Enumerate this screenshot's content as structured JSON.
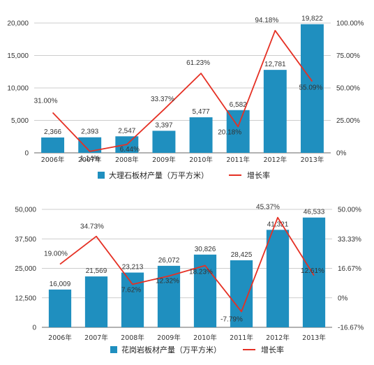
{
  "colors": {
    "bar": "#1f8fbf",
    "line": "#e53024",
    "grid": "#bdbdbd"
  },
  "chart_data": [
    {
      "type": "bar",
      "categories": [
        "2006年",
        "2007年",
        "2008年",
        "2009年",
        "2010年",
        "2011年",
        "2012年",
        "2013年"
      ],
      "series": [
        {
          "name": "大理石板材产量（万平方米）",
          "type": "bar",
          "axis": "left",
          "values": [
            2366,
            2393,
            2547,
            3397,
            5477,
            6582,
            12781,
            19822
          ],
          "labels": [
            "2,366",
            "2,393",
            "2,547",
            "3,397",
            "5,477",
            "6,582",
            "12,781",
            "19,822"
          ]
        },
        {
          "name": "增长率",
          "type": "line",
          "axis": "right",
          "values": [
            31.0,
            1.14,
            6.44,
            33.37,
            61.23,
            20.18,
            94.18,
            55.09
          ],
          "labels": [
            "31.00%",
            "1.14%",
            "6.44%",
            "33.37%",
            "61.23%",
            "20.18%",
            "94.18%",
            "55.09%"
          ]
        }
      ],
      "ylim_left": [
        0,
        20000
      ],
      "yticks_left": [
        "0",
        "5,000",
        "10,000",
        "15,000",
        "20,000"
      ],
      "ylim_right": [
        0,
        100
      ],
      "yticks_right": [
        "0%",
        "25.00%",
        "50.00%",
        "75.00%",
        "100.00%"
      ],
      "grid": true,
      "legend": "bottom"
    },
    {
      "type": "bar",
      "categories": [
        "2006年",
        "2007年",
        "2008年",
        "2009年",
        "2010年",
        "2011年",
        "2012年",
        "2013年"
      ],
      "series": [
        {
          "name": "花岗岩板材产量（万平方米）",
          "type": "bar",
          "axis": "left",
          "values": [
            16009,
            21569,
            23213,
            26072,
            30826,
            28425,
            41321,
            46533
          ],
          "labels": [
            "16,009",
            "21,569",
            "23,213",
            "26,072",
            "30,826",
            "28,425",
            "41,321",
            "46,533"
          ]
        },
        {
          "name": "增长率",
          "type": "line",
          "axis": "right",
          "values": [
            19.0,
            34.73,
            7.62,
            12.32,
            18.23,
            -7.79,
            45.37,
            12.61
          ],
          "labels": [
            "19.00%",
            "34.73%",
            "7.62%",
            "12.32%",
            "18.23%",
            "-7.79%",
            "45.37%",
            "12.61%"
          ]
        }
      ],
      "ylim_left": [
        0,
        50000
      ],
      "yticks_left": [
        "0",
        "12,500",
        "25,000",
        "37,500",
        "50,000"
      ],
      "ylim_right": [
        -16.67,
        50
      ],
      "yticks_right": [
        "-16.67%",
        "0%",
        "16.67%",
        "33.33%",
        "50.00%"
      ],
      "grid": true,
      "legend": "bottom"
    }
  ]
}
